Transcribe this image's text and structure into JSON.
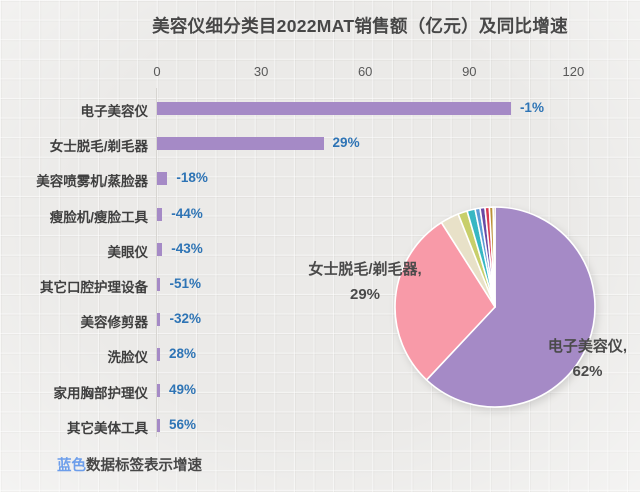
{
  "title": "美容仪细分类目2022MAT销售额（亿元）及同比增速",
  "note": {
    "highlight": "蓝色",
    "rest": "数据标签表示增速"
  },
  "colors": {
    "bar": "#a58ac6",
    "growth_label": "#2e74b5",
    "title_text": "#474747",
    "note_highlight": "#6d9eeb",
    "background": "#ebeae8"
  },
  "chart_data": [
    {
      "type": "bar",
      "orientation": "horizontal",
      "title": "美容仪细分类目2022MAT销售额（亿元）及同比增速",
      "categories": [
        "电子美容仪",
        "女士脱毛/剃毛器",
        "美容喷雾机/蒸脸器",
        "瘦脸机/瘦脸工具",
        "美眼仪",
        "其它口腔护理设备",
        "美容修剪器",
        "洗脸仪",
        "家用胸部护理仪",
        "其它美体工具"
      ],
      "series": [
        {
          "name": "2022MAT销售额(亿元)",
          "values": [
            102,
            48,
            3,
            1.5,
            1.5,
            1,
            1,
            0.8,
            0.8,
            0.5
          ]
        },
        {
          "name": "同比增速",
          "values": [
            "-1%",
            "29%",
            "-18%",
            "-44%",
            "-43%",
            "-51%",
            "-32%",
            "28%",
            "49%",
            "56%"
          ]
        }
      ],
      "xticks": [
        0,
        30,
        60,
        90,
        120
      ],
      "xlim": [
        0,
        130
      ],
      "grid": false,
      "bar_color": "#a58ac6",
      "growth_label_color": "#2e74b5"
    },
    {
      "type": "pie",
      "start_angle_deg": -90,
      "direction": "clockwise",
      "slices": [
        {
          "label": "电子美容仪",
          "pct": 62,
          "color": "#a58ac6"
        },
        {
          "label": "女士脱毛/剃毛器",
          "pct": 29,
          "color": "#f89aa8"
        },
        {
          "label": "美容喷雾机/蒸脸器",
          "pct": 3.0,
          "color": "#e8e1c8"
        },
        {
          "label": "瘦脸机/瘦脸工具",
          "pct": 1.5,
          "color": "#c8cf6b"
        },
        {
          "label": "美眼仪",
          "pct": 1.3,
          "color": "#38b7c3"
        },
        {
          "label": "其它口腔护理设备",
          "pct": 0.8,
          "color": "#5b9bd5"
        },
        {
          "label": "美容修剪器",
          "pct": 0.8,
          "color": "#6a4aa5"
        },
        {
          "label": "洗脸仪",
          "pct": 0.7,
          "color": "#d93a52"
        },
        {
          "label": "家用胸部护理仪",
          "pct": 0.6,
          "color": "#bb9136"
        },
        {
          "label": "其它美体工具",
          "pct": 0.3,
          "color": "#a0622d"
        }
      ],
      "callouts": [
        {
          "line1": "女士脱毛/剃毛器,",
          "line2": "29%"
        },
        {
          "line1": "电子美容仪,",
          "line2": "62%"
        }
      ]
    }
  ],
  "layout_labels": {
    "callout_female_line1": "女士脱毛/剃毛器,",
    "callout_female_line2": "29%",
    "callout_electronic_line1": "电子美容仪,",
    "callout_electronic_line2": "62%"
  }
}
